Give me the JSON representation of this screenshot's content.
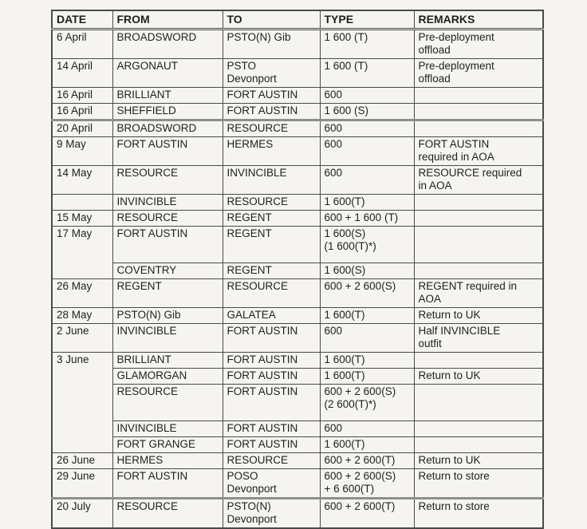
{
  "colors": {
    "page_bg": "#f5f4f0",
    "text": "#1f1f1f",
    "border": "#4a4a4a",
    "thick_line": "#8e8e8e"
  },
  "table": {
    "headers": [
      "DATE",
      "FROM",
      "TO",
      "TYPE",
      "REMARKS"
    ],
    "rows": [
      {
        "date": "6 April",
        "from": "BROADSWORD",
        "to": "PSTO(N) Gib",
        "type": "1 600 (T)",
        "remarks": "Pre-deployment\noffload"
      },
      {
        "date": "14 April",
        "from": "ARGONAUT",
        "to": "PSTO\nDevonport",
        "type": "1 600 (T)",
        "remarks": "Pre-deployment\noffload"
      },
      {
        "date": "16 April",
        "from": "BRILLIANT",
        "to": "FORT AUSTIN",
        "type": "600",
        "remarks": ""
      },
      {
        "date": "16 April",
        "from": "SHEFFIELD",
        "to": "FORT AUSTIN",
        "type": "1 600 (S)",
        "remarks": "",
        "thick_below": true
      },
      {
        "date": "20 April",
        "from": "BROADSWORD",
        "to": "RESOURCE",
        "type": "600",
        "remarks": ""
      },
      {
        "date": "9 May",
        "from": "FORT AUSTIN",
        "to": "HERMES",
        "type": "600",
        "remarks": "FORT AUSTIN\nrequired in AOA"
      },
      {
        "date": "14 May",
        "from": "RESOURCE",
        "to": "INVINCIBLE",
        "type": "600",
        "remarks": "RESOURCE required\nin AOA"
      },
      {
        "date": "",
        "from": "INVINCIBLE",
        "to": "RESOURCE",
        "type": "1 600(T)",
        "remarks": ""
      },
      {
        "date": "15 May",
        "from": "RESOURCE",
        "to": "REGENT",
        "type": "600 + 1 600 (T)",
        "remarks": ""
      },
      {
        "date": "17 May",
        "date_rowspan": 2,
        "from": "FORT AUSTIN",
        "to": "REGENT",
        "type": "1 600(S)\n(1 600(T)*)",
        "remarks": "",
        "extra_pad": true
      },
      {
        "date": null,
        "from": "COVENTRY",
        "to": "REGENT",
        "type": "1 600(S)",
        "remarks": ""
      },
      {
        "date": "26 May",
        "from": "REGENT",
        "to": "RESOURCE",
        "type": "600 + 2 600(S)",
        "remarks": "REGENT required in\nAOA"
      },
      {
        "date": "28 May",
        "from": "PSTO(N) Gib",
        "to": "GALATEA",
        "type": "1 600(T)",
        "remarks": "Return to UK"
      },
      {
        "date": "2 June",
        "from": "INVINCIBLE",
        "to": "FORT AUSTIN",
        "type": "600",
        "remarks": "Half INVINCIBLE\noutfit"
      },
      {
        "date": "3 June",
        "date_rowspan": 5,
        "from": "BRILLIANT",
        "to": "FORT AUSTIN",
        "type": "1 600(T)",
        "remarks": ""
      },
      {
        "date": null,
        "from": "GLAMORGAN",
        "to": "FORT AUSTIN",
        "type": "1 600(T)",
        "remarks": "Return to UK"
      },
      {
        "date": null,
        "from": "RESOURCE",
        "to": "FORT AUSTIN",
        "type": "600 + 2 600(S)\n(2 600(T)*)",
        "remarks": "",
        "extra_pad": true
      },
      {
        "date": null,
        "from": "INVINCIBLE",
        "to": "FORT AUSTIN",
        "type": "600",
        "remarks": ""
      },
      {
        "date": null,
        "from": "FORT GRANGE",
        "to": "FORT AUSTIN",
        "type": "1 600(T)",
        "remarks": ""
      },
      {
        "date": "26 June",
        "from": "HERMES",
        "to": "RESOURCE",
        "type": "600 + 2 600(T)",
        "remarks": "Return to UK"
      },
      {
        "date": "29 June",
        "from": "FORT AUSTIN",
        "to": "POSO\nDevonport",
        "type": "600 + 2 600(S)\n+ 6 600(T)",
        "remarks": "Return to store",
        "thick_below": true
      },
      {
        "date": "20 July",
        "from": "RESOURCE",
        "to": "PSTO(N)\nDevonport",
        "type": "600 + 2 600(T)",
        "remarks": "Return to store"
      }
    ]
  }
}
